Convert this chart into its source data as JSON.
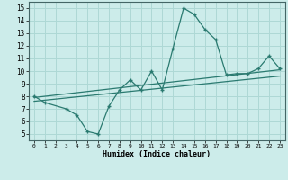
{
  "main_x": [
    0,
    1,
    3,
    4,
    5,
    6,
    7,
    8,
    9,
    10,
    11,
    12,
    13,
    14,
    15,
    16,
    17,
    18,
    19,
    20,
    21,
    22,
    23
  ],
  "main_y": [
    8.0,
    7.5,
    7.0,
    6.5,
    5.2,
    5.0,
    7.2,
    8.5,
    9.3,
    8.5,
    10.0,
    8.5,
    11.8,
    15.0,
    14.5,
    13.3,
    12.5,
    9.7,
    9.8,
    9.8,
    10.2,
    11.2,
    10.2
  ],
  "line2_x": [
    0,
    23
  ],
  "line2_y": [
    7.6,
    9.6
  ],
  "line3_x": [
    0,
    23
  ],
  "line3_y": [
    7.9,
    10.1
  ],
  "line_color": "#2a7a70",
  "bg_color": "#ccecea",
  "grid_color": "#aed8d5",
  "xlim": [
    -0.5,
    23.5
  ],
  "ylim": [
    4.5,
    15.5
  ],
  "xlabel": "Humidex (Indice chaleur)",
  "xticks": [
    0,
    1,
    2,
    3,
    4,
    5,
    6,
    7,
    8,
    9,
    10,
    11,
    12,
    13,
    14,
    15,
    16,
    17,
    18,
    19,
    20,
    21,
    22,
    23
  ],
  "yticks": [
    5,
    6,
    7,
    8,
    9,
    10,
    11,
    12,
    13,
    14,
    15
  ]
}
